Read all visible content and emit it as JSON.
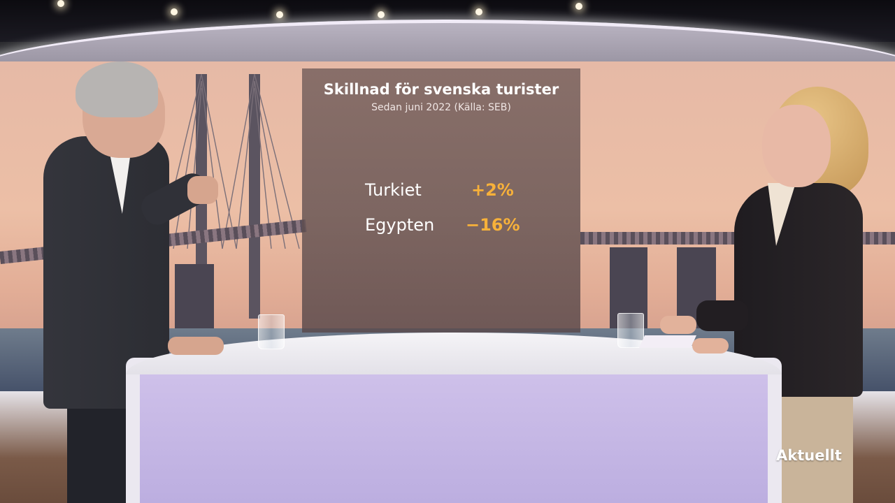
{
  "graphic": {
    "title": "Skillnad för svenska turister",
    "subtitle": "Sedan juni 2022 (Källa: SEB)",
    "rows": [
      {
        "label": "Turkiet",
        "value": "+2%"
      },
      {
        "label": "Egypten",
        "value": "−16%"
      }
    ]
  },
  "broadcast": {
    "logo": "Aktuellt"
  },
  "colors": {
    "value_accent": "#f7b13a",
    "desk_panel": "#c4b6e6",
    "sky": "#ecbfa6"
  }
}
